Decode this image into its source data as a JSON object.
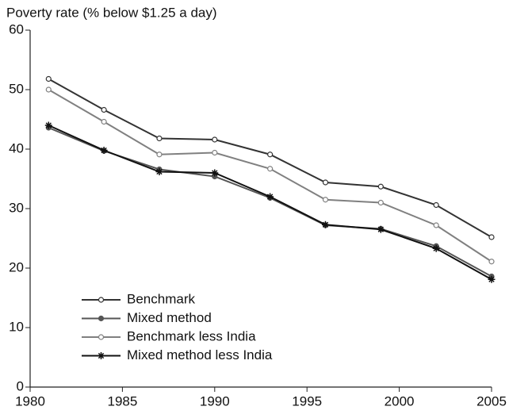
{
  "chart_data": {
    "type": "line",
    "y_label": "Poverty rate (% below $1.25 a day)",
    "x": [
      1981,
      1984,
      1987,
      1990,
      1993,
      1996,
      1999,
      2002,
      2005
    ],
    "series": [
      {
        "name": "Benchmark",
        "color": "#333333",
        "marker": "open-circle",
        "values": [
          51.8,
          46.6,
          41.8,
          41.6,
          39.1,
          34.4,
          33.7,
          30.6,
          25.2
        ]
      },
      {
        "name": "Mixed method",
        "color": "#555555",
        "marker": "dot",
        "values": [
          43.6,
          39.7,
          36.6,
          35.4,
          31.8,
          27.2,
          26.6,
          23.7,
          18.6
        ]
      },
      {
        "name": "Benchmark less India",
        "color": "#808080",
        "marker": "open-circle",
        "values": [
          50.0,
          44.6,
          39.1,
          39.4,
          36.7,
          31.5,
          31.0,
          27.2,
          21.1
        ]
      },
      {
        "name": "Mixed method less India",
        "color": "#111111",
        "marker": "asterisk",
        "values": [
          44.0,
          39.8,
          36.2,
          36.0,
          32.0,
          27.3,
          26.5,
          23.3,
          18.1
        ]
      }
    ],
    "xlim": [
      1980,
      2005
    ],
    "xticks": [
      1980,
      1985,
      1990,
      1995,
      2000,
      2005
    ],
    "ylim": [
      0,
      60
    ],
    "yticks": [
      0,
      10,
      20,
      30,
      40,
      50,
      60
    ],
    "grid": false,
    "legend": "lower-left"
  }
}
